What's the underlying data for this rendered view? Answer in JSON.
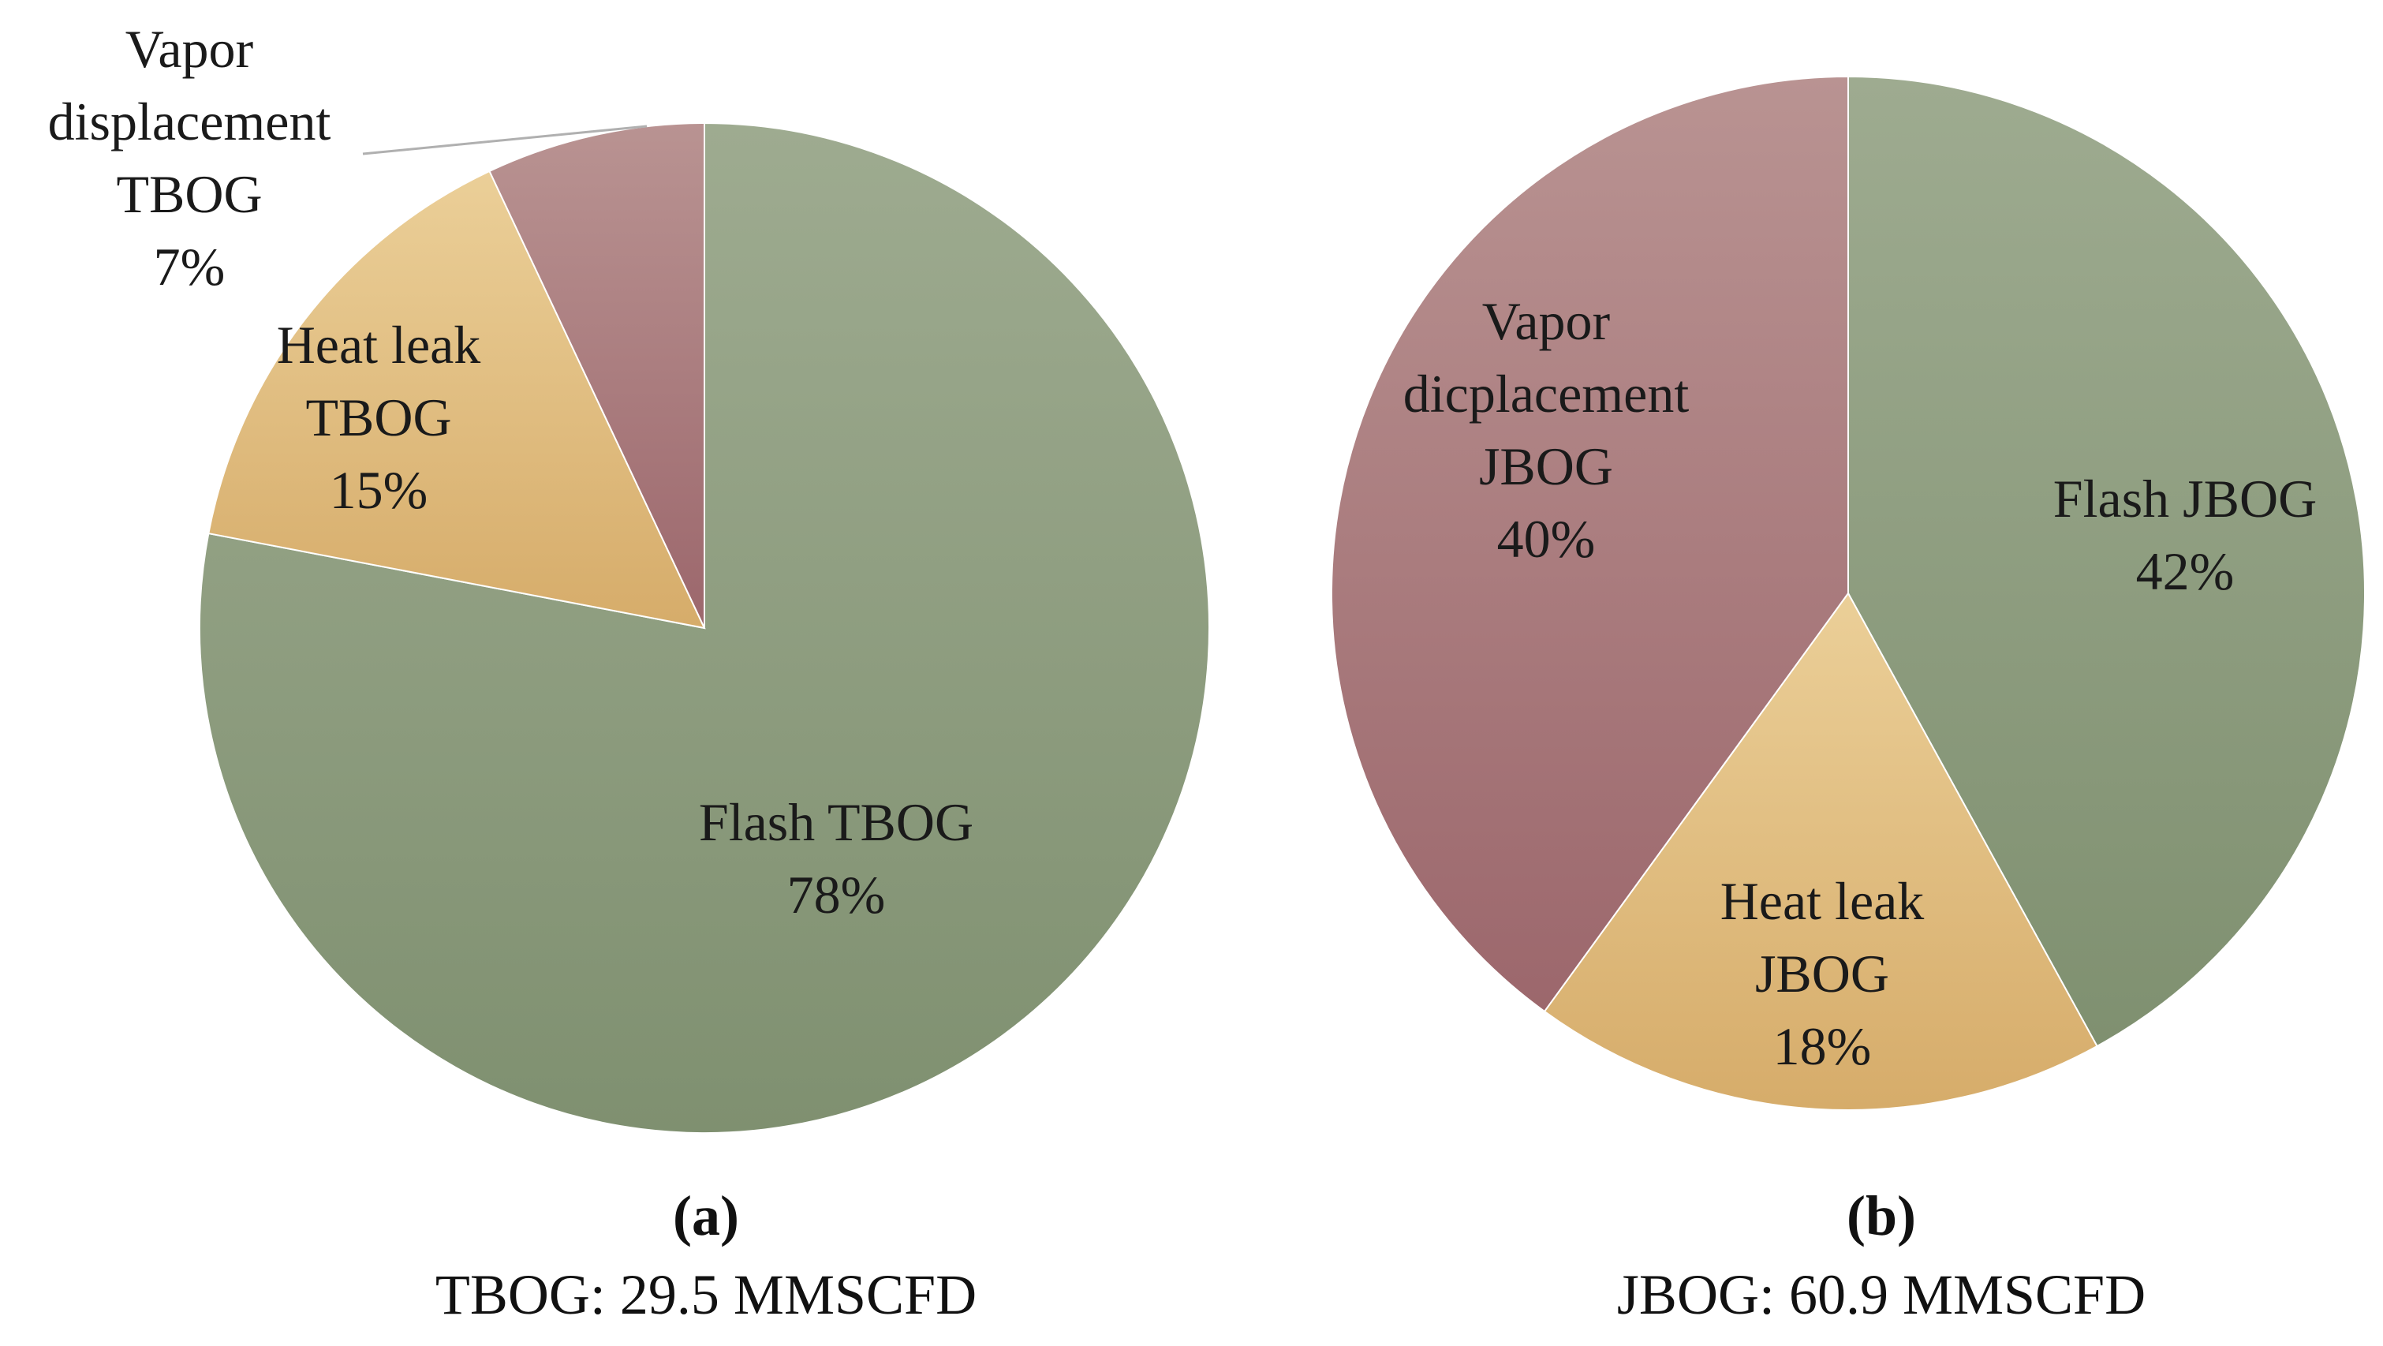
{
  "chart_data": [
    {
      "type": "pie",
      "panel": "(a)",
      "caption": "TBOG: 29.5 MMSCFD",
      "slices": [
        {
          "name": "Flash TBOG",
          "label_lines": [
            "Flash TBOG"
          ],
          "value": 78,
          "pct": "78%",
          "color": "#8b9c7a"
        },
        {
          "name": "Heat leak TBOG",
          "label_lines": [
            "Heat leak",
            "TBOG"
          ],
          "value": 15,
          "pct": "15%",
          "color": "#dfbb80"
        },
        {
          "name": "Vapor displacement TBOG",
          "label_lines": [
            "Vapor",
            "displacement",
            "TBOG"
          ],
          "value": 7,
          "pct": "7%",
          "color": "#aa7a7e"
        }
      ]
    },
    {
      "type": "pie",
      "panel": "(b)",
      "caption": "JBOG: 60.9 MMSCFD",
      "slices": [
        {
          "name": "Flash JBOG",
          "label_lines": [
            "Flash JBOG"
          ],
          "value": 42,
          "pct": "42%",
          "color": "#8b9c7a"
        },
        {
          "name": "Heat leak JBOG",
          "label_lines": [
            "Heat leak",
            "JBOG"
          ],
          "value": 18,
          "pct": "18%",
          "color": "#dfbb80"
        },
        {
          "name": "Vapor dicplacement JBOG",
          "label_lines": [
            "Vapor",
            "dicplacement",
            "JBOG"
          ],
          "value": 40,
          "pct": "40%",
          "color": "#aa7a7e"
        }
      ]
    }
  ]
}
